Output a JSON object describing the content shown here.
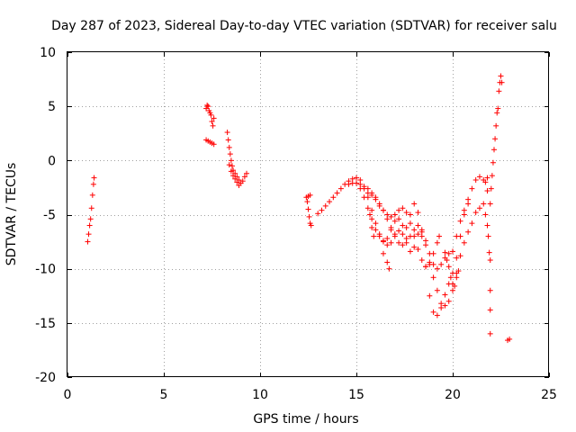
{
  "chart_data": {
    "type": "scatter",
    "title": "Day 287 of 2023, Sidereal Day-to-day VTEC variation (SDTVAR) for receiver salu",
    "xlabel": "GPS time / hours",
    "ylabel": "SDTVAR / TECUs",
    "xlim": [
      0,
      25
    ],
    "ylim": [
      -20,
      10
    ],
    "xticks": [
      0,
      5,
      10,
      15,
      20,
      25
    ],
    "xtick_labels": [
      "0",
      "5",
      "10",
      "15",
      "20",
      "25"
    ],
    "yticks": [
      -20,
      -15,
      -10,
      -5,
      0,
      5,
      10
    ],
    "ytick_labels": [
      "-20",
      "-15",
      "-10",
      "-5",
      "0",
      "5",
      "10"
    ],
    "grid": true,
    "marker": "+",
    "color": "#ff0000",
    "series": [
      {
        "name": "SDTVAR",
        "points": [
          [
            1.05,
            -7.5
          ],
          [
            1.1,
            -6.8
          ],
          [
            1.15,
            -6.0
          ],
          [
            1.2,
            -5.4
          ],
          [
            1.25,
            -4.4
          ],
          [
            1.3,
            -3.2
          ],
          [
            1.35,
            -2.2
          ],
          [
            1.38,
            -1.6
          ],
          [
            7.2,
            4.8
          ],
          [
            7.25,
            5.1
          ],
          [
            7.3,
            5.0
          ],
          [
            7.35,
            4.6
          ],
          [
            7.4,
            4.4
          ],
          [
            7.45,
            4.2
          ],
          [
            7.5,
            3.6
          ],
          [
            7.55,
            3.2
          ],
          [
            7.6,
            3.9
          ],
          [
            7.2,
            1.9
          ],
          [
            7.3,
            1.8
          ],
          [
            7.4,
            1.7
          ],
          [
            7.5,
            1.6
          ],
          [
            7.6,
            1.5
          ],
          [
            8.3,
            2.6
          ],
          [
            8.35,
            1.9
          ],
          [
            8.4,
            1.2
          ],
          [
            8.45,
            0.6
          ],
          [
            8.5,
            0.0
          ],
          [
            8.55,
            -0.5
          ],
          [
            8.6,
            -0.9
          ],
          [
            8.7,
            -1.2
          ],
          [
            8.8,
            -1.5
          ],
          [
            8.9,
            -1.8
          ],
          [
            9.0,
            -2.1
          ],
          [
            9.1,
            -1.9
          ],
          [
            9.2,
            -1.5
          ],
          [
            9.3,
            -1.2
          ],
          [
            8.4,
            -0.4
          ],
          [
            8.5,
            -1.0
          ],
          [
            8.6,
            -1.4
          ],
          [
            8.7,
            -1.7
          ],
          [
            8.8,
            -2.0
          ],
          [
            8.9,
            -2.3
          ],
          [
            12.4,
            -3.4
          ],
          [
            12.45,
            -3.8
          ],
          [
            12.5,
            -4.5
          ],
          [
            12.55,
            -5.2
          ],
          [
            12.6,
            -5.8
          ],
          [
            12.65,
            -6.0
          ],
          [
            12.5,
            -3.3
          ],
          [
            12.6,
            -3.2
          ],
          [
            13.0,
            -4.9
          ],
          [
            13.2,
            -4.6
          ],
          [
            13.4,
            -4.2
          ],
          [
            13.6,
            -3.8
          ],
          [
            13.8,
            -3.4
          ],
          [
            14.0,
            -3.0
          ],
          [
            14.2,
            -2.6
          ],
          [
            14.4,
            -2.2
          ],
          [
            14.6,
            -1.9
          ],
          [
            14.8,
            -1.7
          ],
          [
            15.0,
            -1.6
          ],
          [
            15.2,
            -1.8
          ],
          [
            15.4,
            -2.4
          ],
          [
            15.6,
            -3.4
          ],
          [
            15.8,
            -4.6
          ],
          [
            16.0,
            -5.8
          ],
          [
            16.2,
            -6.8
          ],
          [
            16.4,
            -7.5
          ],
          [
            16.6,
            -7.8
          ],
          [
            16.8,
            -7.6
          ],
          [
            17.0,
            -6.8
          ],
          [
            17.2,
            -6.5
          ],
          [
            17.4,
            -6.8
          ],
          [
            17.6,
            -6.2
          ],
          [
            17.8,
            -5.0
          ],
          [
            18.0,
            -4.0
          ],
          [
            18.2,
            -4.8
          ],
          [
            18.4,
            -7.0
          ],
          [
            18.6,
            -9.8
          ],
          [
            18.8,
            -12.5
          ],
          [
            19.0,
            -14.0
          ],
          [
            19.2,
            -14.3
          ],
          [
            19.4,
            -13.6
          ],
          [
            19.6,
            -12.4
          ],
          [
            19.8,
            -11.4
          ],
          [
            20.0,
            -10.4
          ],
          [
            20.2,
            -9.0
          ],
          [
            20.4,
            -7.0
          ],
          [
            20.6,
            -5.0
          ],
          [
            20.8,
            -3.6
          ],
          [
            21.0,
            -2.6
          ],
          [
            21.2,
            -1.8
          ],
          [
            21.4,
            -1.5
          ],
          [
            21.6,
            -1.8
          ],
          [
            21.8,
            -2.8
          ],
          [
            14.6,
            -2.2
          ],
          [
            14.8,
            -2.1
          ],
          [
            15.0,
            -2.1
          ],
          [
            15.2,
            -2.6
          ],
          [
            15.4,
            -3.4
          ],
          [
            15.6,
            -4.4
          ],
          [
            15.8,
            -5.4
          ],
          [
            16.0,
            -6.4
          ],
          [
            16.2,
            -7.0
          ],
          [
            16.4,
            -7.4
          ],
          [
            16.6,
            -7.2
          ],
          [
            16.8,
            -6.4
          ],
          [
            17.0,
            -5.6
          ],
          [
            17.2,
            -5.4
          ],
          [
            17.4,
            -6.0
          ],
          [
            17.6,
            -7.2
          ],
          [
            17.8,
            -8.4
          ],
          [
            18.0,
            -8.0
          ],
          [
            18.2,
            -6.8
          ],
          [
            18.4,
            -6.6
          ],
          [
            18.6,
            -7.8
          ],
          [
            18.8,
            -9.4
          ],
          [
            19.0,
            -10.8
          ],
          [
            19.2,
            -12.0
          ],
          [
            19.4,
            -13.2
          ],
          [
            19.6,
            -13.4
          ],
          [
            19.8,
            -13.0
          ],
          [
            20.0,
            -12.0
          ],
          [
            20.2,
            -10.4
          ],
          [
            20.4,
            -8.8
          ],
          [
            20.6,
            -7.6
          ],
          [
            20.8,
            -6.6
          ],
          [
            21.0,
            -5.8
          ],
          [
            21.2,
            -4.8
          ],
          [
            21.4,
            -4.4
          ],
          [
            15.2,
            -2.2
          ],
          [
            15.4,
            -2.6
          ],
          [
            15.6,
            -3.0
          ],
          [
            15.8,
            -3.2
          ],
          [
            16.0,
            -3.6
          ],
          [
            16.2,
            -4.2
          ],
          [
            16.4,
            -4.6
          ],
          [
            16.6,
            -5.0
          ],
          [
            16.8,
            -5.2
          ],
          [
            17.0,
            -5.0
          ],
          [
            17.2,
            -4.6
          ],
          [
            17.4,
            -4.4
          ],
          [
            17.6,
            -4.8
          ],
          [
            17.8,
            -5.8
          ],
          [
            18.0,
            -7.0
          ],
          [
            18.2,
            -8.2
          ],
          [
            18.4,
            -9.2
          ],
          [
            18.6,
            -9.8
          ],
          [
            18.8,
            -9.6
          ],
          [
            19.0,
            -8.6
          ],
          [
            19.2,
            -7.6
          ],
          [
            19.3,
            -7.0
          ],
          [
            15.6,
            -2.6
          ],
          [
            15.8,
            -3.0
          ],
          [
            16.0,
            -3.4
          ],
          [
            16.2,
            -4.0
          ],
          [
            16.4,
            -4.6
          ],
          [
            16.6,
            -5.4
          ],
          [
            16.8,
            -6.2
          ],
          [
            17.0,
            -7.0
          ],
          [
            17.2,
            -7.6
          ],
          [
            17.4,
            -7.8
          ],
          [
            17.6,
            -7.6
          ],
          [
            17.8,
            -7.0
          ],
          [
            18.0,
            -6.4
          ],
          [
            18.2,
            -6.0
          ],
          [
            18.4,
            -6.4
          ],
          [
            18.6,
            -7.4
          ],
          [
            18.8,
            -8.6
          ],
          [
            19.0,
            -9.6
          ],
          [
            19.2,
            -10.0
          ],
          [
            19.4,
            -9.6
          ],
          [
            19.6,
            -9.0
          ],
          [
            19.8,
            -8.6
          ],
          [
            20.0,
            -8.4
          ],
          [
            20.2,
            -7.0
          ],
          [
            20.4,
            -5.6
          ],
          [
            20.6,
            -4.6
          ],
          [
            20.8,
            -4.0
          ],
          [
            16.4,
            -8.6
          ],
          [
            16.6,
            -9.4
          ],
          [
            16.7,
            -10.0
          ],
          [
            15.7,
            -5.0
          ],
          [
            15.8,
            -6.2
          ],
          [
            15.9,
            -7.0
          ],
          [
            19.6,
            -8.5
          ],
          [
            19.7,
            -9.2
          ],
          [
            19.8,
            -9.8
          ],
          [
            19.9,
            -10.8
          ],
          [
            20.0,
            -11.4
          ],
          [
            20.1,
            -11.6
          ],
          [
            20.2,
            -10.8
          ],
          [
            20.3,
            -10.2
          ],
          [
            21.6,
            -4.0
          ],
          [
            21.7,
            -5.0
          ],
          [
            21.8,
            -6.0
          ],
          [
            21.85,
            -7.0
          ],
          [
            21.9,
            -8.5
          ],
          [
            21.95,
            -9.2
          ],
          [
            21.7,
            -2.0
          ],
          [
            21.8,
            -1.6
          ],
          [
            21.95,
            -4.0
          ],
          [
            22.0,
            -2.6
          ],
          [
            22.05,
            -1.4
          ],
          [
            22.1,
            -0.2
          ],
          [
            22.15,
            1.0
          ],
          [
            22.2,
            2.0
          ],
          [
            22.25,
            3.2
          ],
          [
            22.3,
            4.4
          ],
          [
            22.35,
            4.8
          ],
          [
            22.4,
            6.4
          ],
          [
            22.45,
            7.2
          ],
          [
            22.5,
            7.8
          ],
          [
            22.55,
            7.2
          ],
          [
            21.95,
            -12.0
          ],
          [
            21.95,
            -13.8
          ],
          [
            21.95,
            -16.0
          ],
          [
            22.85,
            -16.6
          ],
          [
            22.95,
            -16.5
          ]
        ]
      }
    ]
  }
}
